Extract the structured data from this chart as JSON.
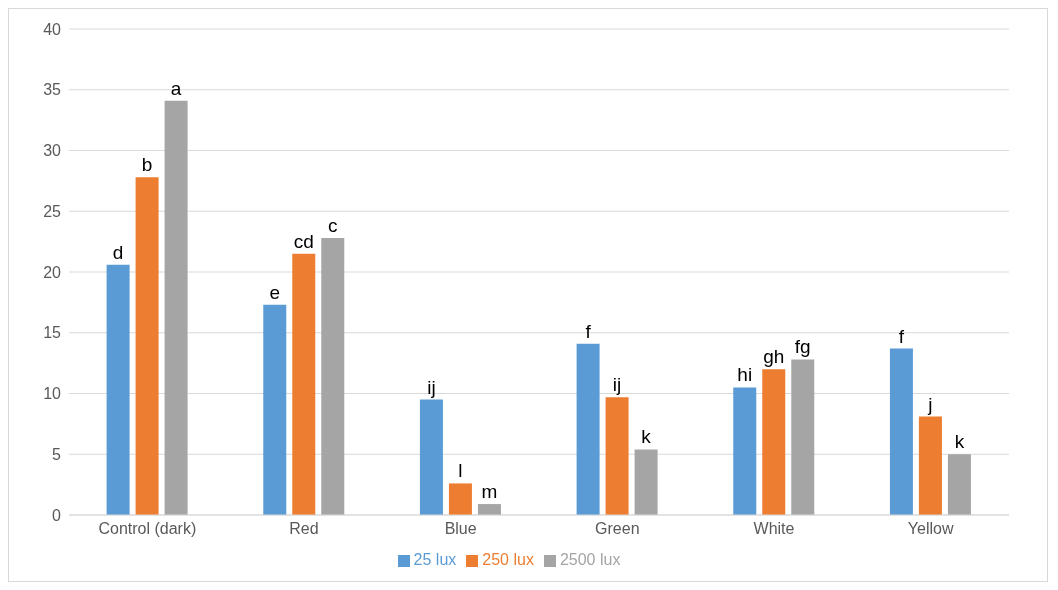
{
  "chart_data": {
    "type": "bar",
    "categories": [
      "Control (dark)",
      "Red",
      "Blue",
      "Green",
      "White",
      "Yellow"
    ],
    "series": [
      {
        "name": "25 lux",
        "color": "#5b9bd5",
        "values": [
          20.6,
          17.3,
          9.5,
          14.1,
          10.5,
          13.7
        ],
        "value_labels": [
          "d",
          "e",
          "ij",
          "f",
          "hi",
          "f"
        ]
      },
      {
        "name": "250 lux",
        "color": "#ed7d31",
        "values": [
          27.8,
          21.5,
          2.6,
          9.7,
          12.0,
          8.1
        ],
        "value_labels": [
          "b",
          "cd",
          "l",
          "ij",
          "gh",
          "j"
        ]
      },
      {
        "name": "2500 lux",
        "color": "#a5a5a5",
        "values": [
          34.1,
          22.8,
          0.9,
          5.4,
          12.8,
          5.0
        ],
        "value_labels": [
          "a",
          "c",
          "m",
          "k",
          "fg",
          "k"
        ]
      }
    ],
    "ylim": [
      0,
      40
    ],
    "yticks": [
      0,
      5,
      10,
      15,
      20,
      25,
      30,
      35,
      40
    ],
    "grid": "y",
    "legend": "bottom"
  }
}
